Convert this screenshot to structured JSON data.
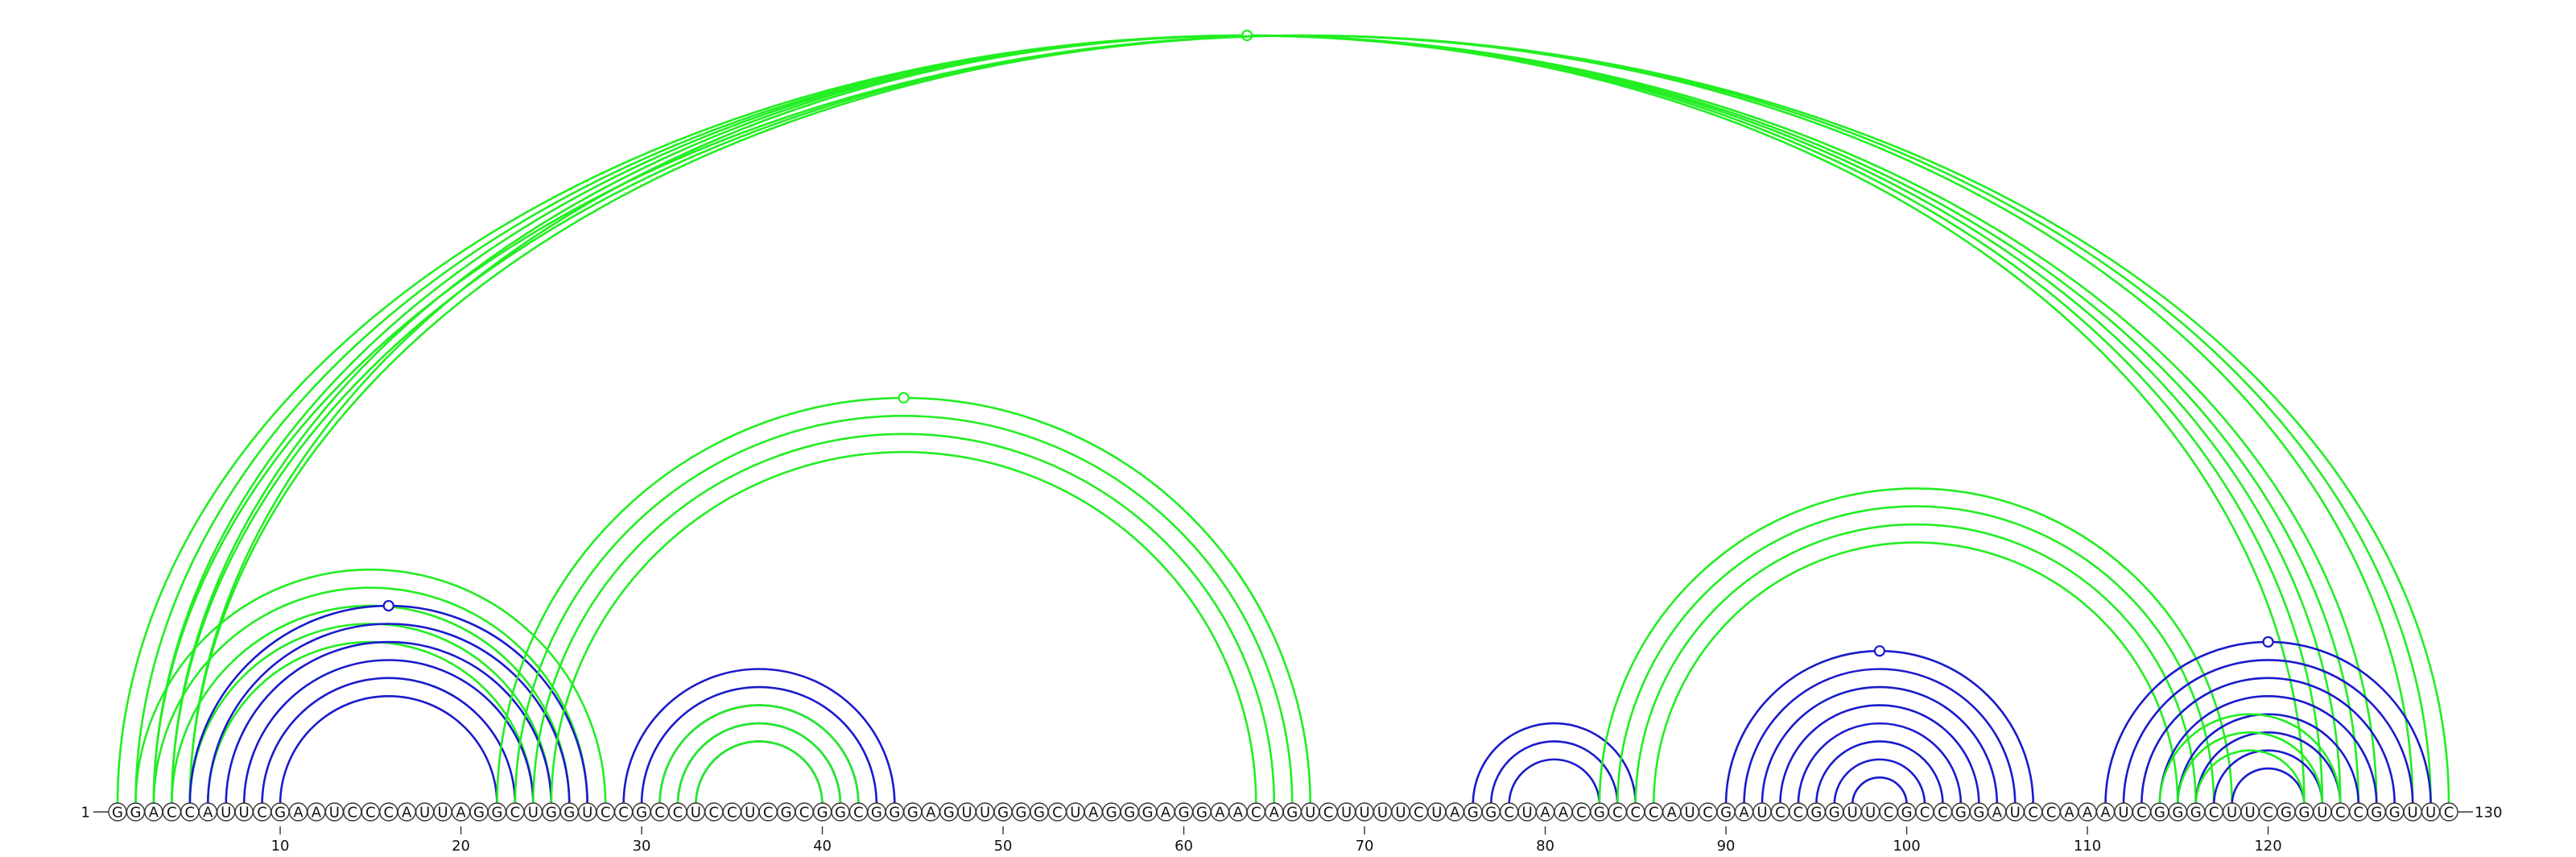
{
  "sequence": "GGACCAUUCGAAUCCCAUUAGGCUGGUCCGCCUCCUCGCGGCGGGAGUUGGGCUAGGGAGGAACAGUCUUUUCUAGGCUAACGCCCAUCGAUCCGGUUCGCCGGAUCCAAAUCGGGCUUCGGUCCGGUUC",
  "labels": {
    "start_index": "1",
    "end_index": "130"
  },
  "ticks": [
    "10",
    "20",
    "30",
    "40",
    "50",
    "60",
    "70",
    "80",
    "90",
    "100",
    "110",
    "120"
  ],
  "colors": {
    "green": "#22ee22",
    "blue": "#1a1acc"
  },
  "arc_groups": [
    {
      "color": "green",
      "outer": [
        1,
        126
      ],
      "count": 5,
      "marker": true
    },
    {
      "color": "green",
      "outer": [
        3,
        130
      ],
      "count": 3,
      "marker": false
    },
    {
      "color": "green",
      "outer": [
        2,
        28
      ],
      "count": 5,
      "marker": false
    },
    {
      "color": "blue",
      "outer": [
        5,
        27
      ],
      "count": 6,
      "marker": true
    },
    {
      "color": "green",
      "outer": [
        22,
        67
      ],
      "count": 4,
      "marker": true
    },
    {
      "color": "blue",
      "outer": [
        29,
        44
      ],
      "count": 5,
      "marker": false
    },
    {
      "color": "green",
      "outer": [
        31,
        42
      ],
      "count": 3,
      "marker": false
    },
    {
      "color": "blue",
      "outer": [
        76,
        85
      ],
      "count": 3,
      "marker": false
    },
    {
      "color": "green",
      "outer": [
        83,
        118
      ],
      "count": 4,
      "marker": false
    },
    {
      "color": "blue",
      "outer": [
        90,
        107
      ],
      "count": 8,
      "marker": true
    },
    {
      "color": "blue",
      "outer": [
        111,
        129
      ],
      "count": 8,
      "marker": true
    },
    {
      "color": "green",
      "outer": [
        114,
        124
      ],
      "count": 3,
      "marker": false
    }
  ]
}
